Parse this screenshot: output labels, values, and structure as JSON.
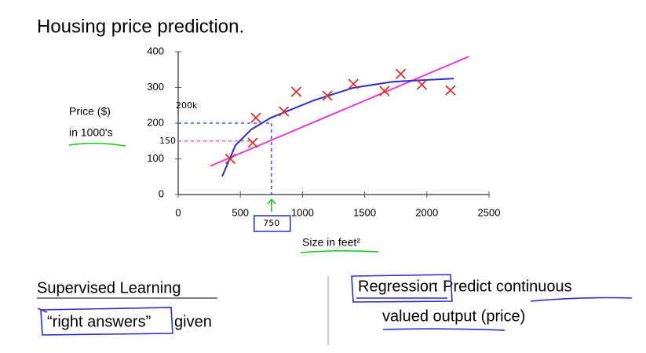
{
  "chart_data": {
    "type": "scatter",
    "title": "Housing price prediction.",
    "y_label": [
      "Price ($)",
      "in 1000's"
    ],
    "x_label": "Size in feet²",
    "xlim": [
      0,
      2500
    ],
    "xticks": [
      0,
      500,
      1000,
      1500,
      2000,
      2500
    ],
    "ylim": [
      0,
      400
    ],
    "yticks": [
      0,
      100,
      200,
      300,
      400
    ],
    "points": {
      "color": "#d9302c",
      "x": [
        420,
        600,
        625,
        850,
        950,
        1200,
        1410,
        1660,
        1790,
        1960,
        2190
      ],
      "y": [
        100,
        145,
        215,
        233,
        288,
        277,
        310,
        290,
        338,
        308,
        292
      ]
    },
    "lines": [
      {
        "color": "#e83ad8",
        "x": [
          260,
          2340
        ],
        "y": [
          80,
          387
        ]
      },
      {
        "color": "#2b2bd0",
        "x": [
          354,
          461,
          587,
          745,
          1092,
          1408,
          1723,
          2216
        ],
        "y": [
          51,
          138,
          182,
          215,
          264,
          299,
          316,
          325
        ]
      }
    ],
    "annotations": [
      {
        "text": "200k",
        "y": 200,
        "color": "#2b2bd0"
      },
      {
        "text": "150",
        "y": 150,
        "color": "#e83ad8"
      },
      {
        "text": "750",
        "x": 750,
        "color": "#19c419"
      }
    ]
  },
  "notes": {
    "left": {
      "title": "Supervised Learning",
      "line": "“right answers”",
      "rest": "given"
    },
    "right": {
      "boxed": "Regression",
      "line1": ": Predict continuous",
      "line2": "valued output (price)"
    }
  }
}
